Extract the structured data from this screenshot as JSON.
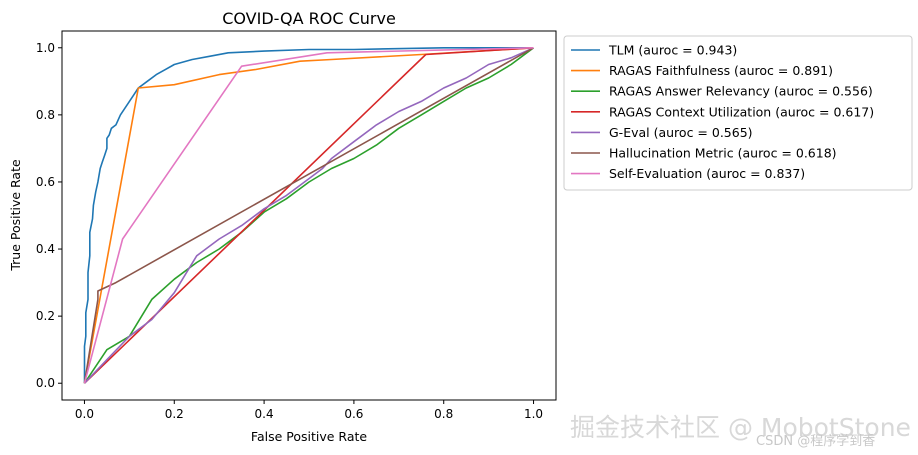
{
  "chart_data": {
    "type": "line",
    "title": "COVID-QA ROC Curve",
    "xlabel": "False Positive Rate",
    "ylabel": "True Positive Rate",
    "xlim": [
      -0.05,
      1.05
    ],
    "ylim": [
      -0.05,
      1.05
    ],
    "grid": false,
    "legend_position": "outside-upper-right",
    "x_ticks": [
      0.0,
      0.2,
      0.4,
      0.6,
      0.8,
      1.0
    ],
    "x_tick_labels": [
      "0.0",
      "0.2",
      "0.4",
      "0.6",
      "0.8",
      "1.0"
    ],
    "y_ticks": [
      0.0,
      0.2,
      0.4,
      0.6,
      0.8,
      1.0
    ],
    "y_tick_labels": [
      "0.0",
      "0.2",
      "0.4",
      "0.6",
      "0.8",
      "1.0"
    ],
    "series": [
      {
        "name": "TLM",
        "label": "TLM (auroc = 0.943)",
        "color": "#1f77b4",
        "x": [
          0.0,
          0.0,
          0.003,
          0.003,
          0.008,
          0.008,
          0.012,
          0.012,
          0.018,
          0.02,
          0.025,
          0.03,
          0.035,
          0.04,
          0.045,
          0.05,
          0.05,
          0.055,
          0.06,
          0.07,
          0.08,
          0.09,
          0.1,
          0.11,
          0.12,
          0.14,
          0.16,
          0.18,
          0.2,
          0.24,
          0.28,
          0.32,
          0.4,
          0.5,
          0.6,
          0.8,
          1.0
        ],
        "y": [
          0.0,
          0.11,
          0.14,
          0.21,
          0.25,
          0.33,
          0.38,
          0.45,
          0.49,
          0.53,
          0.57,
          0.6,
          0.64,
          0.66,
          0.68,
          0.7,
          0.73,
          0.74,
          0.76,
          0.77,
          0.8,
          0.82,
          0.84,
          0.86,
          0.88,
          0.9,
          0.92,
          0.935,
          0.95,
          0.965,
          0.975,
          0.985,
          0.99,
          0.995,
          0.995,
          1.0,
          1.0
        ]
      },
      {
        "name": "RAGAS Faithfulness",
        "label": "RAGAS Faithfulness (auroc = 0.891)",
        "color": "#ff7f0e",
        "x": [
          0.0,
          0.12,
          0.2,
          0.3,
          0.38,
          0.48,
          0.55,
          0.75,
          1.0
        ],
        "y": [
          0.0,
          0.88,
          0.89,
          0.92,
          0.935,
          0.96,
          0.965,
          0.98,
          1.0
        ]
      },
      {
        "name": "RAGAS Answer Relevancy",
        "label": "RAGAS Answer Relevancy (auroc = 0.556)",
        "color": "#2ca02c",
        "x": [
          0.0,
          0.05,
          0.1,
          0.15,
          0.2,
          0.25,
          0.3,
          0.35,
          0.4,
          0.45,
          0.5,
          0.55,
          0.6,
          0.65,
          0.7,
          0.75,
          0.8,
          0.85,
          0.9,
          0.95,
          1.0
        ],
        "y": [
          0.0,
          0.1,
          0.14,
          0.25,
          0.31,
          0.36,
          0.4,
          0.45,
          0.51,
          0.55,
          0.6,
          0.64,
          0.67,
          0.71,
          0.76,
          0.8,
          0.84,
          0.88,
          0.91,
          0.95,
          1.0
        ]
      },
      {
        "name": "RAGAS Context Utilization",
        "label": "RAGAS Context Utilization (auroc = 0.617)",
        "color": "#d62728",
        "x": [
          0.0,
          0.76,
          1.0
        ],
        "y": [
          0.0,
          0.98,
          1.0
        ]
      },
      {
        "name": "G-Eval",
        "label": "G-Eval (auroc = 0.565)",
        "color": "#9467bd",
        "x": [
          0.0,
          0.05,
          0.1,
          0.15,
          0.2,
          0.25,
          0.3,
          0.35,
          0.4,
          0.45,
          0.5,
          0.53,
          0.55,
          0.6,
          0.65,
          0.7,
          0.75,
          0.8,
          0.85,
          0.9,
          0.95,
          1.0
        ],
        "y": [
          0.0,
          0.07,
          0.14,
          0.19,
          0.27,
          0.38,
          0.43,
          0.47,
          0.52,
          0.56,
          0.61,
          0.64,
          0.67,
          0.72,
          0.77,
          0.81,
          0.84,
          0.88,
          0.91,
          0.95,
          0.97,
          1.0
        ]
      },
      {
        "name": "Hallucination Metric",
        "label": "Hallucination Metric (auroc = 0.618)",
        "color": "#8c564b",
        "x": [
          0.0,
          0.03,
          0.03,
          0.07,
          1.0
        ],
        "y": [
          0.0,
          0.25,
          0.275,
          0.3,
          1.0
        ]
      },
      {
        "name": "Self-Evaluation",
        "label": "Self-Evaluation (auroc = 0.837)",
        "color": "#e377c2",
        "x": [
          0.0,
          0.085,
          0.35,
          0.54,
          1.0
        ],
        "y": [
          0.0,
          0.43,
          0.945,
          0.985,
          1.0
        ]
      }
    ]
  },
  "watermark": {
    "main": "掘金技术社区 @ MobotStone",
    "sub": "CSDN @程序学到香"
  }
}
